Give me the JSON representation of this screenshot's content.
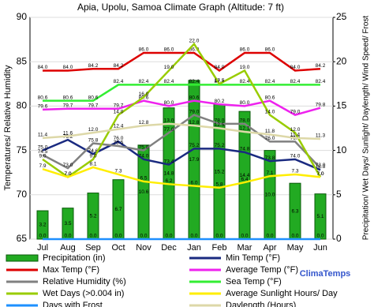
{
  "chart_data": {
    "type": "combo",
    "title": "Apia, Upolu, Samoa Climate Graph (Altitude: 7 ft)",
    "y_label": "Temperatures/ Relative Humidity",
    "y2_label": "Precipitation/ Wet Days/ Sunlight/ Daylength/ Wind Speed/ Frost",
    "brand": "ClimaTemps",
    "categories": [
      "Jul",
      "Aug",
      "Sep",
      "Oct",
      "Nov",
      "Dec",
      "Jan",
      "Feb",
      "Mar",
      "Apr",
      "May",
      "Jun"
    ],
    "ylim": [
      65,
      90
    ],
    "yticks": [
      65,
      70,
      75,
      80,
      85,
      90
    ],
    "y2lim": [
      0,
      25
    ],
    "y2ticks": [
      0,
      5,
      10,
      15,
      20,
      25
    ],
    "grid": true,
    "series": [
      {
        "name": "Precipitation (in)",
        "type": "bar",
        "axis": "y2",
        "color": "#22aa22",
        "values": [
          3.2,
          3.5,
          5.2,
          6.7,
          10.6,
          14.8,
          17.9,
          15.2,
          14.4,
          10.0,
          6.3,
          5.1
        ],
        "value_labels": [
          "3.2",
          "3.5",
          "5.2",
          "6.7",
          "10.6",
          "14.8",
          "17.9",
          "15.2",
          "14.4",
          "10.0",
          "6.3",
          "5.1"
        ]
      },
      {
        "name": "Min Temp (°F)",
        "type": "line",
        "color": "#1a2a80",
        "values": [
          75.0,
          76.2,
          74.6,
          76.0,
          74.0,
          73.4,
          75.2,
          75.2,
          74.8,
          73.8,
          74.0,
          72.8
        ],
        "value_labels": [
          "75.0",
          "76.2",
          "74.6",
          "76.0",
          "74.0",
          "73.4",
          "75.2",
          "75.2",
          "74.8",
          "73.8",
          "74.0",
          "72.8"
        ]
      },
      {
        "name": "Max Temp (°F)",
        "type": "line",
        "color": "#dd0000",
        "values": [
          84.0,
          84.0,
          84.2,
          84.2,
          86.0,
          86.0,
          86.0,
          84.0,
          86.0,
          86.0,
          84.0,
          84.2
        ],
        "value_labels": [
          "84.0",
          "84.0",
          "84.2",
          "84.2",
          "86.0",
          "86.0",
          "86.0",
          "84.0",
          "86.0",
          "86.0",
          "84.0",
          "84.2"
        ]
      },
      {
        "name": "Average Temp (°F)",
        "type": "line",
        "color": "#ee22ee",
        "values": [
          79.6,
          79.7,
          79.7,
          79.7,
          80.6,
          80.0,
          80.6,
          80.2,
          80.0,
          80.6,
          79.0,
          79.8
        ],
        "value_labels": [
          "79.6",
          "79.7",
          "79.7",
          "79.7",
          "80.6",
          "80.0",
          "80.6",
          "80.2",
          "80.0",
          "80.6",
          "79.0",
          "79.8"
        ]
      },
      {
        "name": "Relative Humidity (%)",
        "type": "line",
        "color": "#808080",
        "values": [
          74.5,
          73.0,
          75.8,
          75.5,
          75.0,
          77.0,
          79.0,
          78.0,
          78.0,
          76.0,
          76.0,
          73.0
        ],
        "value_labels": [
          "74.5",
          "73.0",
          "75.8",
          "75.5",
          "75.0",
          "77.0",
          "79.0",
          "78.0",
          "78.0",
          "76.0",
          "76.0",
          "73.0"
        ]
      },
      {
        "name": "Sea Temp (°F)",
        "type": "line",
        "color": "#33ee33",
        "values": [
          80.6,
          80.6,
          80.6,
          82.4,
          82.4,
          82.4,
          82.4,
          82.4,
          82.4,
          82.4,
          82.4,
          82.4
        ],
        "value_labels": [
          "80.6",
          "80.6",
          "80.6",
          "82.4",
          "82.4",
          "82.4",
          "82.4",
          "82.4",
          "82.4",
          "82.4",
          "82.4",
          "82.4"
        ]
      },
      {
        "name": "Wet Days (>0.004 in)",
        "type": "line",
        "axis": "y2",
        "color": "#99cc00",
        "values": [
          9.0,
          7.0,
          9.0,
          14.0,
          16.0,
          19.0,
          22.0,
          17.5,
          19.0,
          14.0,
          12.0,
          7.0
        ],
        "value_labels": [
          "9.0",
          "7.0",
          "9.0",
          "14.0",
          "16.0",
          "19.0",
          "22.0",
          "17.5",
          "19.0",
          "14.0",
          "12.0",
          "7.0"
        ]
      },
      {
        "name": "Average Sunlight Hours/ Day",
        "type": "line",
        "axis": "y2",
        "color": "#ffee00",
        "values": [
          7.9,
          7.0,
          8.1,
          7.3,
          6.5,
          6.2,
          6.0,
          5.8,
          6.4,
          7.1,
          7.3,
          7.0
        ],
        "value_labels": [
          "7.9",
          "7.0",
          "8.1",
          "7.3",
          "6.5",
          "6.2",
          "6.0",
          "5.8",
          "6.4",
          "7.1",
          "7.3",
          "7.0"
        ]
      },
      {
        "name": "Days with Frost",
        "type": "line",
        "axis": "y2",
        "color": "#1e90ff",
        "values": [
          0,
          0,
          0,
          0,
          0,
          0,
          0,
          0,
          0,
          0,
          0,
          0
        ],
        "value_labels": [
          "0.0",
          "0.0",
          "0.0",
          "0.0",
          "0.0",
          "0.0",
          "0.0",
          "0.0",
          "0.0",
          "0.0",
          "0.0",
          "0.0"
        ]
      },
      {
        "name": "Daylength (Hours)",
        "type": "line",
        "axis": "y2",
        "color": "#ddd8a8",
        "values": [
          11.4,
          11.6,
          12.0,
          12.4,
          12.8,
          13.0,
          12.8,
          12.5,
          12.1,
          11.8,
          11.4,
          11.3
        ],
        "value_labels": [
          "11.4",
          "11.6",
          "12.0",
          "12.4",
          "12.8",
          "13.0",
          "12.8",
          "12.5",
          "12.1",
          "11.8",
          "11.4",
          "11.3"
        ]
      }
    ]
  }
}
